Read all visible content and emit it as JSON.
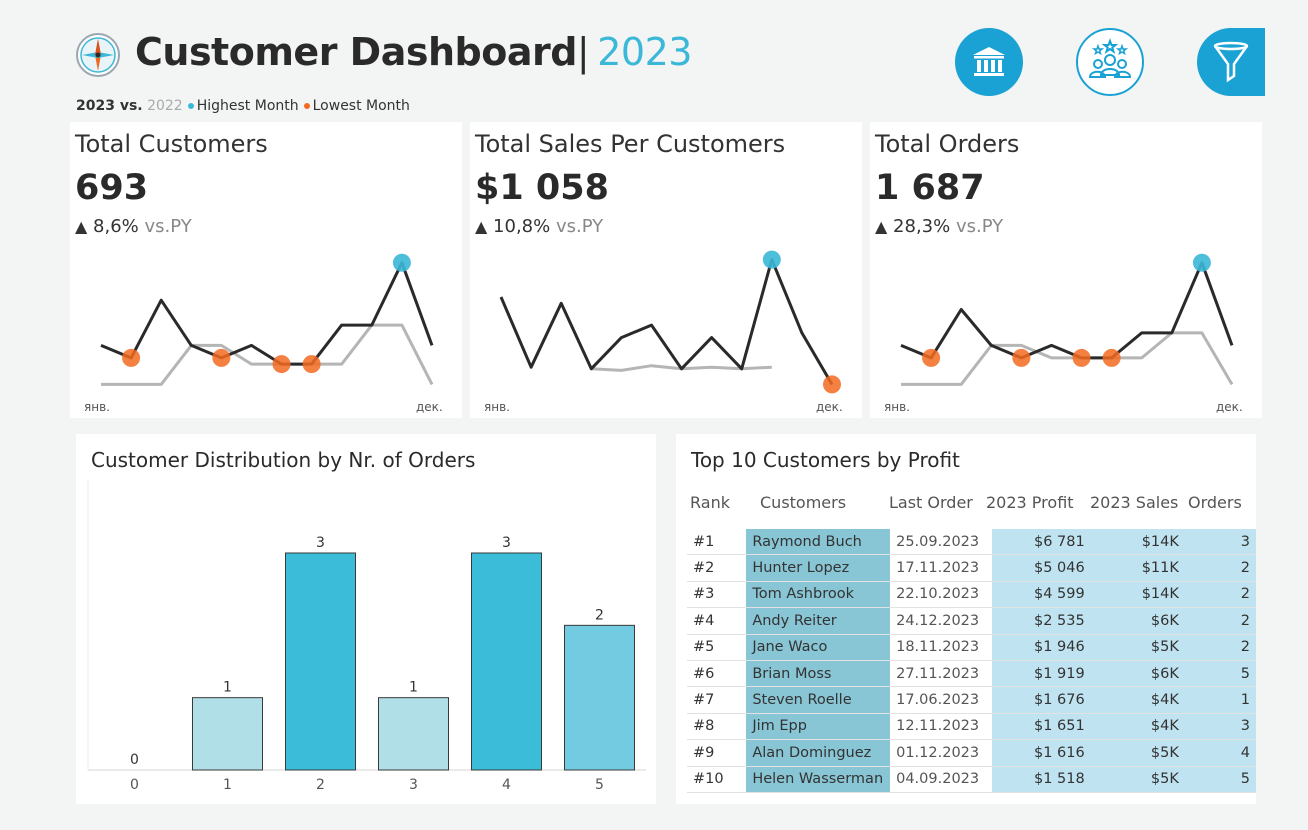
{
  "header": {
    "title": "Customer Dashboard",
    "separator": "|",
    "year": "2023",
    "legend": {
      "current_year": "2023 vs.",
      "previous_year": "2022",
      "highest_label": "Highest Month",
      "lowest_label": "Lowest Month"
    }
  },
  "nav": {
    "bank_icon": "bank-icon",
    "customers_icon": "customers-icon",
    "filter_icon": "filter-icon"
  },
  "colors": {
    "accent": "#3bb8d7",
    "highest": "#3bb8d7",
    "lowest": "#f26a21",
    "current_line": "#2a2a2a",
    "previous_line": "#b5b5b5",
    "bar_dark": "#3bbcd8",
    "bar_mid": "#72cbe0",
    "bar_light": "#b1dfe8"
  },
  "kpis": [
    {
      "title": "Total Customers",
      "value": "693",
      "change": "8,6%",
      "vs": "vs.PY",
      "month_start": "янв.",
      "month_end": "дек."
    },
    {
      "title": "Total Sales Per Customers",
      "value": "$1 058",
      "change": "10,8%",
      "vs": "vs.PY",
      "month_start": "янв.",
      "month_end": "дек."
    },
    {
      "title": "Total Orders",
      "value": "1 687",
      "change": "28,3%",
      "vs": "vs.PY",
      "month_start": "янв.",
      "month_end": "дек."
    }
  ],
  "chart_data": [
    {
      "type": "line",
      "x": [
        1,
        2,
        3,
        4,
        5,
        6,
        7,
        8,
        9,
        10,
        11,
        12
      ],
      "ylim": [
        0,
        10
      ],
      "series": [
        {
          "values": [
            3.5,
            2.7,
            6.4,
            3.5,
            2.7,
            3.5,
            2.3,
            2.3,
            4.8,
            4.8,
            8.8,
            3.5
          ]
        },
        {
          "values": [
            1.0,
            1.0,
            1.0,
            3.5,
            3.5,
            2.3,
            2.3,
            2.3,
            2.3,
            4.8,
            4.8,
            1.0
          ]
        }
      ],
      "highest": [
        11
      ],
      "lowest": [
        2,
        5,
        7,
        8
      ]
    },
    {
      "type": "line",
      "x": [
        1,
        2,
        3,
        4,
        5,
        6,
        7,
        8,
        9,
        10,
        11,
        12
      ],
      "ylim": [
        0,
        10
      ],
      "series": [
        {
          "values": [
            6.6,
            2.1,
            6.2,
            2.0,
            4.0,
            4.8,
            2.0,
            4.0,
            2.0,
            9.0,
            4.3,
            1.0
          ]
        },
        {
          "values": [
            null,
            null,
            null,
            2.0,
            1.9,
            2.2,
            2.0,
            2.1,
            2.0,
            2.1,
            null,
            null
          ]
        }
      ],
      "highest": [
        10
      ],
      "lowest": [
        12
      ]
    },
    {
      "type": "line",
      "x": [
        1,
        2,
        3,
        4,
        5,
        6,
        7,
        8,
        9,
        10,
        11,
        12
      ],
      "ylim": [
        0,
        10
      ],
      "series": [
        {
          "values": [
            3.5,
            2.7,
            5.8,
            3.5,
            2.7,
            3.5,
            2.7,
            2.7,
            4.3,
            4.3,
            8.8,
            3.5
          ]
        },
        {
          "values": [
            1.0,
            1.0,
            1.0,
            3.5,
            3.5,
            2.7,
            2.7,
            2.7,
            2.7,
            4.3,
            4.3,
            1.0
          ]
        }
      ],
      "highest": [
        11
      ],
      "lowest": [
        2,
        5,
        7,
        8
      ]
    },
    {
      "type": "bar",
      "title": "Customer Distribution by Nr. of Orders",
      "categories": [
        "0",
        "1",
        "2",
        "3",
        "4",
        "5"
      ],
      "values": [
        0,
        1,
        3,
        1,
        3,
        2
      ],
      "ylim": [
        0,
        3.6
      ],
      "shades": [
        "light",
        "light",
        "dark",
        "light",
        "dark",
        "mid"
      ]
    }
  ],
  "top_customers": {
    "title": "Top 10 Customers by Profit",
    "headers": {
      "rank": "Rank",
      "customer": "Customers",
      "last_order": "Last Order",
      "profit": "2023 Profit",
      "sales": "2023 Sales",
      "orders": "Orders"
    },
    "rows": [
      {
        "rank": "#1",
        "customer": "Raymond Buch",
        "last_order": "25.09.2023",
        "profit": "$6 781",
        "sales": "$14K",
        "orders": "3"
      },
      {
        "rank": "#2",
        "customer": "Hunter Lopez",
        "last_order": "17.11.2023",
        "profit": "$5 046",
        "sales": "$11K",
        "orders": "2"
      },
      {
        "rank": "#3",
        "customer": "Tom Ashbrook",
        "last_order": "22.10.2023",
        "profit": "$4 599",
        "sales": "$14K",
        "orders": "2"
      },
      {
        "rank": "#4",
        "customer": "Andy Reiter",
        "last_order": "24.12.2023",
        "profit": "$2 535",
        "sales": "$6K",
        "orders": "2"
      },
      {
        "rank": "#5",
        "customer": "Jane Waco",
        "last_order": "18.11.2023",
        "profit": "$1 946",
        "sales": "$5K",
        "orders": "2"
      },
      {
        "rank": "#6",
        "customer": "Brian Moss",
        "last_order": "27.11.2023",
        "profit": "$1 919",
        "sales": "$6K",
        "orders": "5"
      },
      {
        "rank": "#7",
        "customer": "Steven Roelle",
        "last_order": "17.06.2023",
        "profit": "$1 676",
        "sales": "$4K",
        "orders": "1"
      },
      {
        "rank": "#8",
        "customer": "Jim Epp",
        "last_order": "12.11.2023",
        "profit": "$1 651",
        "sales": "$4K",
        "orders": "3"
      },
      {
        "rank": "#9",
        "customer": "Alan Dominguez",
        "last_order": "01.12.2023",
        "profit": "$1 616",
        "sales": "$5K",
        "orders": "4"
      },
      {
        "rank": "#10",
        "customer": "Helen Wasserman",
        "last_order": "04.09.2023",
        "profit": "$1 518",
        "sales": "$5K",
        "orders": "5"
      }
    ]
  }
}
